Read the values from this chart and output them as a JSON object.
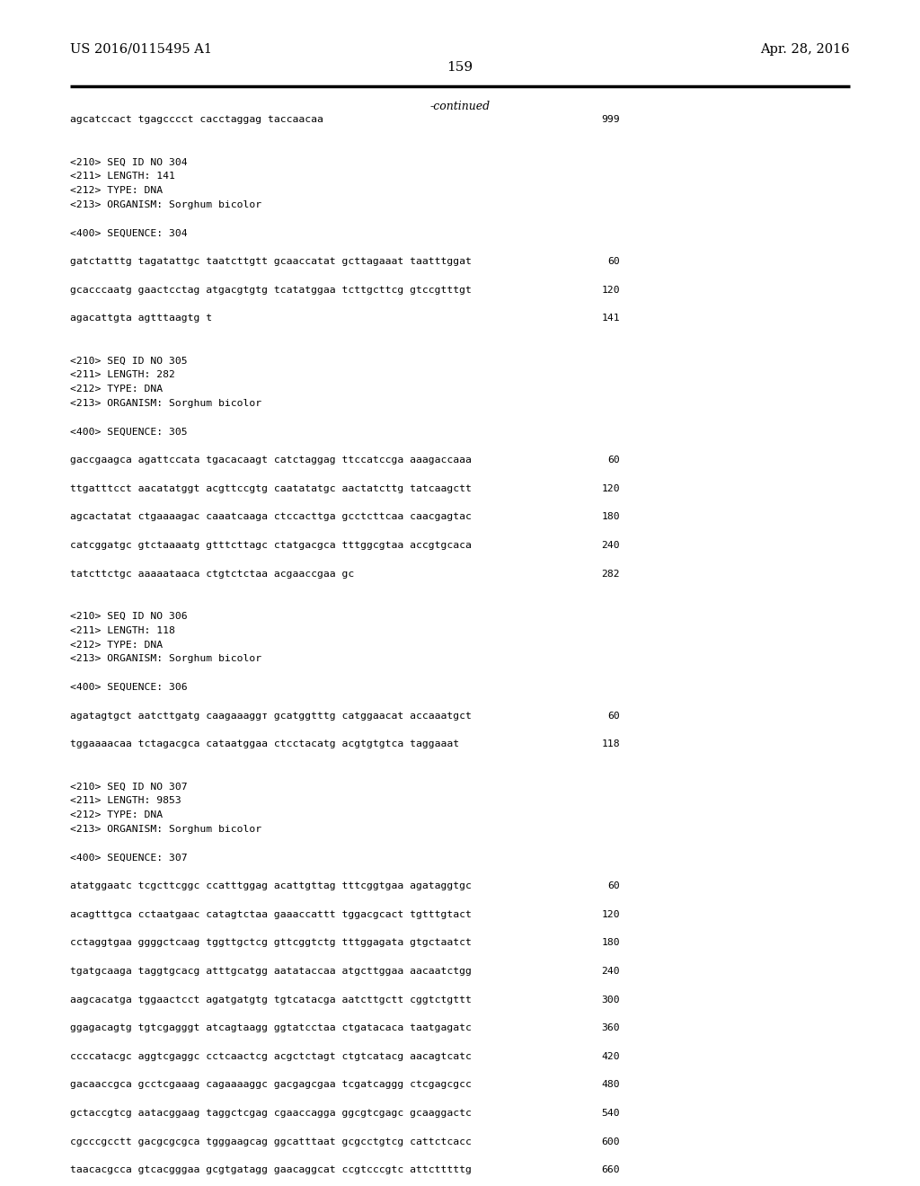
{
  "background_color": "#ffffff",
  "top_left_text": "US 2016/0115495 A1",
  "top_right_text": "Apr. 28, 2016",
  "page_number": "159",
  "continued_text": "-continued",
  "figsize": [
    10.24,
    13.2
  ],
  "dpi": 100,
  "lines": [
    {
      "text": "agcatccact tgagcccct cacctaggag taccaacaa",
      "num": "999",
      "type": "seq"
    },
    {
      "text": "",
      "num": "",
      "type": "blank"
    },
    {
      "text": "",
      "num": "",
      "type": "blank"
    },
    {
      "text": "<210> SEQ ID NO 304",
      "num": "",
      "type": "meta"
    },
    {
      "text": "<211> LENGTH: 141",
      "num": "",
      "type": "meta"
    },
    {
      "text": "<212> TYPE: DNA",
      "num": "",
      "type": "meta"
    },
    {
      "text": "<213> ORGANISM: Sorghum bicolor",
      "num": "",
      "type": "meta"
    },
    {
      "text": "",
      "num": "",
      "type": "blank"
    },
    {
      "text": "<400> SEQUENCE: 304",
      "num": "",
      "type": "meta"
    },
    {
      "text": "",
      "num": "",
      "type": "blank"
    },
    {
      "text": "gatctatttg tagatattgc taatcttgtt gcaaccatat gcttagaaat taatttggat",
      "num": "60",
      "type": "seq"
    },
    {
      "text": "",
      "num": "",
      "type": "blank"
    },
    {
      "text": "gcacccaatg gaactcctag atgacgtgtg tcatatggaa tcttgcttcg gtccgtttgt",
      "num": "120",
      "type": "seq"
    },
    {
      "text": "",
      "num": "",
      "type": "blank"
    },
    {
      "text": "agacattgta agtttaagtg t",
      "num": "141",
      "type": "seq"
    },
    {
      "text": "",
      "num": "",
      "type": "blank"
    },
    {
      "text": "",
      "num": "",
      "type": "blank"
    },
    {
      "text": "<210> SEQ ID NO 305",
      "num": "",
      "type": "meta"
    },
    {
      "text": "<211> LENGTH: 282",
      "num": "",
      "type": "meta"
    },
    {
      "text": "<212> TYPE: DNA",
      "num": "",
      "type": "meta"
    },
    {
      "text": "<213> ORGANISM: Sorghum bicolor",
      "num": "",
      "type": "meta"
    },
    {
      "text": "",
      "num": "",
      "type": "blank"
    },
    {
      "text": "<400> SEQUENCE: 305",
      "num": "",
      "type": "meta"
    },
    {
      "text": "",
      "num": "",
      "type": "blank"
    },
    {
      "text": "gaccgaagca agattccata tgacacaagt catctaggag ttccatccga aaagaccaaa",
      "num": "60",
      "type": "seq"
    },
    {
      "text": "",
      "num": "",
      "type": "blank"
    },
    {
      "text": "ttgatttcct aacatatggt acgttccgtg caatatatgc aactatcttg tatcaagctt",
      "num": "120",
      "type": "seq"
    },
    {
      "text": "",
      "num": "",
      "type": "blank"
    },
    {
      "text": "agcactatat ctgaaaagac caaatcaaga ctccacttga gcctcttcaa caacgagtac",
      "num": "180",
      "type": "seq"
    },
    {
      "text": "",
      "num": "",
      "type": "blank"
    },
    {
      "text": "catcggatgc gtctaaaatg gtttcttagc ctatgacgca tttggcgtaa accgtgcaca",
      "num": "240",
      "type": "seq"
    },
    {
      "text": "",
      "num": "",
      "type": "blank"
    },
    {
      "text": "tatcttctgc aaaaataaca ctgtctctaa acgaaccgaa gc",
      "num": "282",
      "type": "seq"
    },
    {
      "text": "",
      "num": "",
      "type": "blank"
    },
    {
      "text": "",
      "num": "",
      "type": "blank"
    },
    {
      "text": "<210> SEQ ID NO 306",
      "num": "",
      "type": "meta"
    },
    {
      "text": "<211> LENGTH: 118",
      "num": "",
      "type": "meta"
    },
    {
      "text": "<212> TYPE: DNA",
      "num": "",
      "type": "meta"
    },
    {
      "text": "<213> ORGANISM: Sorghum bicolor",
      "num": "",
      "type": "meta"
    },
    {
      "text": "",
      "num": "",
      "type": "blank"
    },
    {
      "text": "<400> SEQUENCE: 306",
      "num": "",
      "type": "meta"
    },
    {
      "text": "",
      "num": "",
      "type": "blank"
    },
    {
      "text": "agatagtgct aatcttgatg caagaaaggт gcatggtttg catggaacat accaaatgct",
      "num": "60",
      "type": "seq"
    },
    {
      "text": "",
      "num": "",
      "type": "blank"
    },
    {
      "text": "tggaaaacaa tctagacgca cataatggaa ctcctacatg acgtgtgtca taggaaat",
      "num": "118",
      "type": "seq"
    },
    {
      "text": "",
      "num": "",
      "type": "blank"
    },
    {
      "text": "",
      "num": "",
      "type": "blank"
    },
    {
      "text": "<210> SEQ ID NO 307",
      "num": "",
      "type": "meta"
    },
    {
      "text": "<211> LENGTH: 9853",
      "num": "",
      "type": "meta"
    },
    {
      "text": "<212> TYPE: DNA",
      "num": "",
      "type": "meta"
    },
    {
      "text": "<213> ORGANISM: Sorghum bicolor",
      "num": "",
      "type": "meta"
    },
    {
      "text": "",
      "num": "",
      "type": "blank"
    },
    {
      "text": "<400> SEQUENCE: 307",
      "num": "",
      "type": "meta"
    },
    {
      "text": "",
      "num": "",
      "type": "blank"
    },
    {
      "text": "atatggaatc tcgcttcggc ccatttggag acattgttag tttcggtgaa agataggtgc",
      "num": "60",
      "type": "seq"
    },
    {
      "text": "",
      "num": "",
      "type": "blank"
    },
    {
      "text": "acagtttgca cctaatgaac catagtctaa gaaaccattt tggacgcact tgtttgtact",
      "num": "120",
      "type": "seq"
    },
    {
      "text": "",
      "num": "",
      "type": "blank"
    },
    {
      "text": "cctaggtgaa ggggctcaag tggttgctcg gttcggtctg tttggagata gtgctaatct",
      "num": "180",
      "type": "seq"
    },
    {
      "text": "",
      "num": "",
      "type": "blank"
    },
    {
      "text": "tgatgcaaga taggtgcacg atttgcatgg aatataccaa atgcttggaa aacaatctgg",
      "num": "240",
      "type": "seq"
    },
    {
      "text": "",
      "num": "",
      "type": "blank"
    },
    {
      "text": "aagcacatga tggaactcct agatgatgtg tgtcatacga aatcttgctt cggtctgttt",
      "num": "300",
      "type": "seq"
    },
    {
      "text": "",
      "num": "",
      "type": "blank"
    },
    {
      "text": "ggagacagtg tgtcgagggt atcagtaagg ggtatcctaa ctgatacaca taatgagatc",
      "num": "360",
      "type": "seq"
    },
    {
      "text": "",
      "num": "",
      "type": "blank"
    },
    {
      "text": "ccccatacgc aggtcgaggc cctcaactcg acgctctagt ctgtcatacg aacagtcatc",
      "num": "420",
      "type": "seq"
    },
    {
      "text": "",
      "num": "",
      "type": "blank"
    },
    {
      "text": "gacaaccgca gcctcgaaag cagaaaaggc gacgagcgaa tcgatcaggg ctcgagcgcc",
      "num": "480",
      "type": "seq"
    },
    {
      "text": "",
      "num": "",
      "type": "blank"
    },
    {
      "text": "gctaccgtcg aatacggaag taggctcgag cgaaccagga ggcgtcgagc gcaaggactc",
      "num": "540",
      "type": "seq"
    },
    {
      "text": "",
      "num": "",
      "type": "blank"
    },
    {
      "text": "cgcccgcctt gacgcgcgca tgggaagcag ggcatttaat gcgcctgtcg cattctcacc",
      "num": "600",
      "type": "seq"
    },
    {
      "text": "",
      "num": "",
      "type": "blank"
    },
    {
      "text": "taacacgcca gtcacgggaa gcgtgatagg gaacaggcat ccgtcccgtc attctttttg",
      "num": "660",
      "type": "seq"
    }
  ]
}
